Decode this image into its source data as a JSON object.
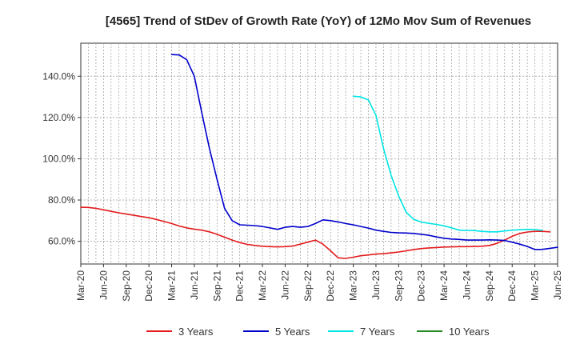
{
  "chart_data": {
    "type": "line",
    "title": "[4565]  Trend of StDev of Growth Rate (YoY) of 12Mo Mov Sum of Revenues",
    "xlabel": "",
    "ylabel": "",
    "ylim": [
      49,
      156
    ],
    "yticks": [
      60,
      80,
      100,
      120,
      140
    ],
    "ytick_labels": [
      "60.0%",
      "80.0%",
      "100.0%",
      "120.0%",
      "140.0%"
    ],
    "xtick_labels": [
      "Mar-20",
      "Jun-20",
      "Sep-20",
      "Dec-20",
      "Mar-21",
      "Jun-21",
      "Sep-21",
      "Dec-21",
      "Mar-22",
      "Jun-22",
      "Sep-22",
      "Dec-22",
      "Mar-23",
      "Jun-23",
      "Sep-23",
      "Dec-23",
      "Mar-24",
      "Jun-24",
      "Sep-24",
      "Dec-24",
      "Mar-25",
      "Jun-25"
    ],
    "grid": true,
    "legend_position": "bottom",
    "series": [
      {
        "name": "3 Years",
        "color": "#e41a1c",
        "start_month": 0,
        "values": [
          76.5,
          76.4,
          76.0,
          75.3,
          74.5,
          73.8,
          73.2,
          72.6,
          72.0,
          71.4,
          70.6,
          69.6,
          68.6,
          67.4,
          66.5,
          65.9,
          65.4,
          64.6,
          63.4,
          62.0,
          60.6,
          59.4,
          58.5,
          58.0,
          57.6,
          57.4,
          57.3,
          57.4,
          57.7,
          58.6,
          59.6,
          60.6,
          58.6,
          55.4,
          52.0,
          51.7,
          52.3,
          53.0,
          53.4,
          53.8,
          54.0,
          54.4,
          54.8,
          55.4,
          56.0,
          56.5,
          56.8,
          57.0,
          57.2,
          57.3,
          57.4,
          57.4,
          57.5,
          57.6,
          58.0,
          59.0,
          60.6,
          62.4,
          63.8,
          64.5,
          64.8,
          64.8,
          64.6
        ]
      },
      {
        "name": "5 Years",
        "color": "#0000cc",
        "start_month": 12,
        "values": [
          150.5,
          150.3,
          148.0,
          140.0,
          122.0,
          105.0,
          90.0,
          76.0,
          70.0,
          68.0,
          67.8,
          67.6,
          67.2,
          66.5,
          65.8,
          66.8,
          67.2,
          66.8,
          67.2,
          68.6,
          70.4,
          70.0,
          69.4,
          68.6,
          68.0,
          67.2,
          66.4,
          65.4,
          64.8,
          64.3,
          64.1,
          64.0,
          63.8,
          63.4,
          62.9,
          62.1,
          61.5,
          61.1,
          60.9,
          60.6,
          60.6,
          60.6,
          60.7,
          60.6,
          60.4,
          59.6,
          58.6,
          57.5,
          56.0,
          56.1,
          56.6,
          57.1
        ]
      },
      {
        "name": "7 Years",
        "color": "#00e5e5",
        "start_month": 36,
        "values": [
          130.3,
          130.0,
          128.5,
          121.0,
          105.0,
          92.0,
          82.0,
          74.0,
          70.6,
          69.3,
          68.7,
          68.2,
          67.5,
          66.5,
          65.4,
          65.3,
          65.2,
          64.8,
          64.6,
          64.6,
          65.0,
          65.4,
          65.6,
          65.8,
          65.7,
          65.3
        ]
      },
      {
        "name": "10 Years",
        "color": "#228b22",
        "start_month": 0,
        "values": []
      }
    ]
  }
}
